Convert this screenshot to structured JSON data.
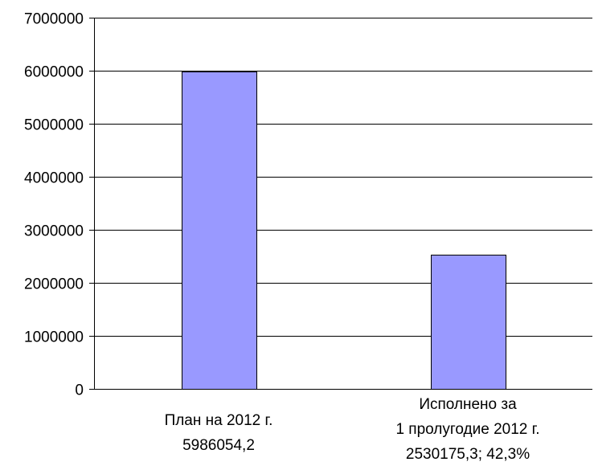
{
  "chart_data": {
    "type": "bar",
    "title": "",
    "xlabel": "",
    "ylabel": "",
    "ylim": [
      0,
      7000000
    ],
    "yticks": [
      0,
      1000000,
      2000000,
      3000000,
      4000000,
      5000000,
      6000000,
      7000000
    ],
    "ytick_labels": [
      "0",
      "1000000",
      "2000000",
      "3000000",
      "4000000",
      "5000000",
      "6000000",
      "7000000"
    ],
    "grid": true,
    "legend": "none",
    "bar_color": "#9999ff",
    "bar_edge_color": "#000000",
    "categories": [
      {
        "lines": [
          "План на 2012 г.",
          "5986054,2"
        ]
      },
      {
        "lines": [
          "Исполнено за",
          "1 пролугодие 2012 г.",
          "2530175,3; 42,3%"
        ]
      }
    ],
    "values": [
      5986054.2,
      2530175.3
    ]
  }
}
